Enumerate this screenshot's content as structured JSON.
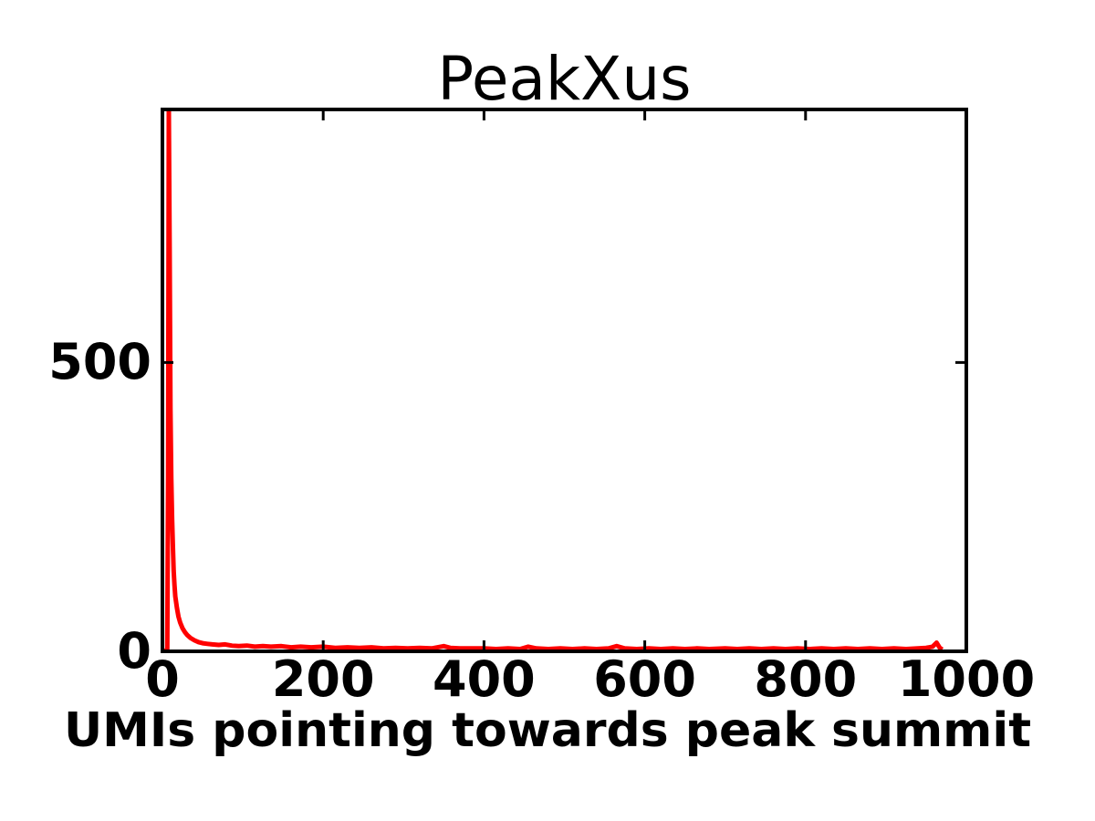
{
  "chart_data": {
    "type": "line",
    "title": "PeakXus",
    "xlabel": "UMIs pointing towards peak summit",
    "ylabel": "",
    "xlim": [
      0,
      1000
    ],
    "ylim": [
      0,
      938
    ],
    "x_ticks": [
      0,
      200,
      400,
      600,
      800,
      1000
    ],
    "x_tick_labels": [
      "0",
      "200",
      "400",
      "600",
      "800",
      "1000"
    ],
    "y_ticks": [
      0,
      500
    ],
    "y_tick_labels": [
      "0",
      "500"
    ],
    "grid": false,
    "legend": "none",
    "line_color": "#ff0000",
    "axis_color": "#000000",
    "background_color": "#ffffff",
    "peak": {
      "x": 8,
      "y": 938
    },
    "series": [
      {
        "points": [
          [
            0,
            0
          ],
          [
            4,
            1
          ],
          [
            6,
            4
          ],
          [
            7,
            300
          ],
          [
            8,
            938
          ],
          [
            9,
            700
          ],
          [
            10,
            420
          ],
          [
            11,
            300
          ],
          [
            12,
            230
          ],
          [
            13,
            180
          ],
          [
            14,
            140
          ],
          [
            15,
            115
          ],
          [
            16,
            95
          ],
          [
            18,
            75
          ],
          [
            20,
            60
          ],
          [
            22,
            50
          ],
          [
            25,
            40
          ],
          [
            28,
            33
          ],
          [
            31,
            28
          ],
          [
            35,
            23
          ],
          [
            40,
            19
          ],
          [
            45,
            16
          ],
          [
            50,
            14
          ],
          [
            56,
            13
          ],
          [
            62,
            12
          ],
          [
            70,
            11
          ],
          [
            78,
            12
          ],
          [
            86,
            10
          ],
          [
            95,
            9
          ],
          [
            105,
            10
          ],
          [
            115,
            8
          ],
          [
            125,
            9
          ],
          [
            135,
            8
          ],
          [
            148,
            9
          ],
          [
            160,
            7
          ],
          [
            172,
            8
          ],
          [
            185,
            7
          ],
          [
            200,
            8
          ],
          [
            215,
            6
          ],
          [
            230,
            7
          ],
          [
            245,
            6
          ],
          [
            260,
            7
          ],
          [
            275,
            5
          ],
          [
            290,
            6
          ],
          [
            305,
            5
          ],
          [
            320,
            6
          ],
          [
            335,
            5
          ],
          [
            350,
            9
          ],
          [
            358,
            6
          ],
          [
            370,
            5
          ],
          [
            385,
            5
          ],
          [
            400,
            5
          ],
          [
            415,
            4
          ],
          [
            430,
            5
          ],
          [
            445,
            4
          ],
          [
            455,
            8
          ],
          [
            465,
            5
          ],
          [
            480,
            4
          ],
          [
            495,
            5
          ],
          [
            510,
            4
          ],
          [
            525,
            5
          ],
          [
            540,
            4
          ],
          [
            555,
            5
          ],
          [
            565,
            9
          ],
          [
            575,
            5
          ],
          [
            590,
            4
          ],
          [
            605,
            5
          ],
          [
            620,
            4
          ],
          [
            635,
            5
          ],
          [
            650,
            4
          ],
          [
            665,
            5
          ],
          [
            680,
            4
          ],
          [
            700,
            5
          ],
          [
            715,
            4
          ],
          [
            730,
            5
          ],
          [
            745,
            4
          ],
          [
            760,
            5
          ],
          [
            775,
            4
          ],
          [
            790,
            5
          ],
          [
            805,
            4
          ],
          [
            820,
            5
          ],
          [
            835,
            4
          ],
          [
            850,
            5
          ],
          [
            865,
            4
          ],
          [
            880,
            5
          ],
          [
            895,
            4
          ],
          [
            910,
            5
          ],
          [
            925,
            4
          ],
          [
            940,
            5
          ],
          [
            950,
            6
          ],
          [
            958,
            8
          ],
          [
            963,
            15
          ],
          [
            967,
            6
          ],
          [
            970,
            3
          ]
        ]
      }
    ]
  }
}
